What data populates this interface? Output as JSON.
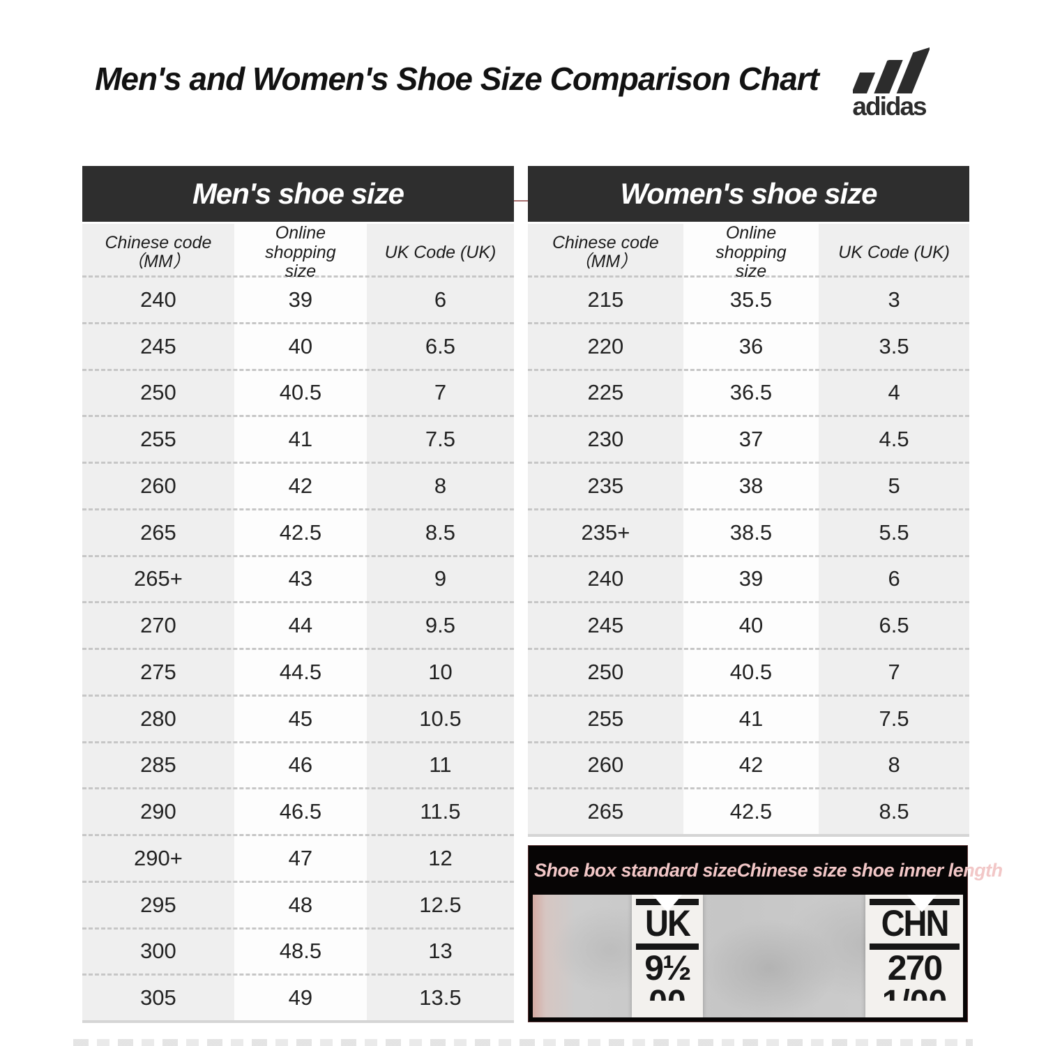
{
  "title": "Men's and Women's Shoe Size Comparison Chart",
  "brand": {
    "wordmark": "adidas"
  },
  "tables": {
    "men": {
      "title": "Men's shoe size",
      "columns": [
        "Chinese code （MM）",
        "Online shopping size",
        "UK Code (UK)"
      ],
      "rows": [
        [
          "240",
          "39",
          "6"
        ],
        [
          "245",
          "40",
          "6.5"
        ],
        [
          "250",
          "40.5",
          "7"
        ],
        [
          "255",
          "41",
          "7.5"
        ],
        [
          "260",
          "42",
          "8"
        ],
        [
          "265",
          "42.5",
          "8.5"
        ],
        [
          "265+",
          "43",
          "9"
        ],
        [
          "270",
          "44",
          "9.5"
        ],
        [
          "275",
          "44.5",
          "10"
        ],
        [
          "280",
          "45",
          "10.5"
        ],
        [
          "285",
          "46",
          "11"
        ],
        [
          "290",
          "46.5",
          "11.5"
        ],
        [
          "290+",
          "47",
          "12"
        ],
        [
          "295",
          "48",
          "12.5"
        ],
        [
          "300",
          "48.5",
          "13"
        ],
        [
          "305",
          "49",
          "13.5"
        ]
      ]
    },
    "women": {
      "title": "Women's shoe size",
      "columns": [
        "Chinese code （MM）",
        "Online shopping size",
        "UK Code (UK)"
      ],
      "rows": [
        [
          "215",
          "35.5",
          "3"
        ],
        [
          "220",
          "36",
          "3.5"
        ],
        [
          "225",
          "36.5",
          "4"
        ],
        [
          "230",
          "37",
          "4.5"
        ],
        [
          "235",
          "38",
          "5"
        ],
        [
          "235+",
          "38.5",
          "5.5"
        ],
        [
          "240",
          "39",
          "6"
        ],
        [
          "245",
          "40",
          "6.5"
        ],
        [
          "250",
          "40.5",
          "7"
        ],
        [
          "255",
          "41",
          "7.5"
        ],
        [
          "260",
          "42",
          "8"
        ],
        [
          "265",
          "42.5",
          "8.5"
        ]
      ]
    }
  },
  "footer_panel": {
    "left_label": "Shoe box standard size",
    "right_label": "Chinese size shoe inner length",
    "left_tag": {
      "code": "UK",
      "value": "9½",
      "partial": "00"
    },
    "right_tag": {
      "code": "CHN",
      "value": "270",
      "partial": "1/00"
    }
  },
  "colors": {
    "table_header_bg": "#2e2e2e",
    "table_header_text": "#ffffff",
    "column_gray": "#efefef",
    "column_white": "#fdfdfd",
    "row_dash": "#c6c6c6",
    "banner_bg": "#070505",
    "banner_text": "#f2c7c7",
    "title_text": "#121212"
  },
  "chart_data": [
    {
      "type": "table",
      "title": "Men's shoe size",
      "columns": [
        "Chinese code （MM）",
        "Online shopping size",
        "UK Code (UK)"
      ],
      "rows": [
        [
          "240",
          "39",
          "6"
        ],
        [
          "245",
          "40",
          "6.5"
        ],
        [
          "250",
          "40.5",
          "7"
        ],
        [
          "255",
          "41",
          "7.5"
        ],
        [
          "260",
          "42",
          "8"
        ],
        [
          "265",
          "42.5",
          "8.5"
        ],
        [
          "265+",
          "43",
          "9"
        ],
        [
          "270",
          "44",
          "9.5"
        ],
        [
          "275",
          "44.5",
          "10"
        ],
        [
          "280",
          "45",
          "10.5"
        ],
        [
          "285",
          "46",
          "11"
        ],
        [
          "290",
          "46.5",
          "11.5"
        ],
        [
          "290+",
          "47",
          "12"
        ],
        [
          "295",
          "48",
          "12.5"
        ],
        [
          "300",
          "48.5",
          "13"
        ],
        [
          "305",
          "49",
          "13.5"
        ]
      ]
    },
    {
      "type": "table",
      "title": "Women's shoe size",
      "columns": [
        "Chinese code （MM）",
        "Online shopping size",
        "UK Code (UK)"
      ],
      "rows": [
        [
          "215",
          "35.5",
          "3"
        ],
        [
          "220",
          "36",
          "3.5"
        ],
        [
          "225",
          "36.5",
          "4"
        ],
        [
          "230",
          "37",
          "4.5"
        ],
        [
          "235",
          "38",
          "5"
        ],
        [
          "235+",
          "38.5",
          "5.5"
        ],
        [
          "240",
          "39",
          "6"
        ],
        [
          "245",
          "40",
          "6.5"
        ],
        [
          "250",
          "40.5",
          "7"
        ],
        [
          "255",
          "41",
          "7.5"
        ],
        [
          "260",
          "42",
          "8"
        ],
        [
          "265",
          "42.5",
          "8.5"
        ]
      ]
    }
  ]
}
